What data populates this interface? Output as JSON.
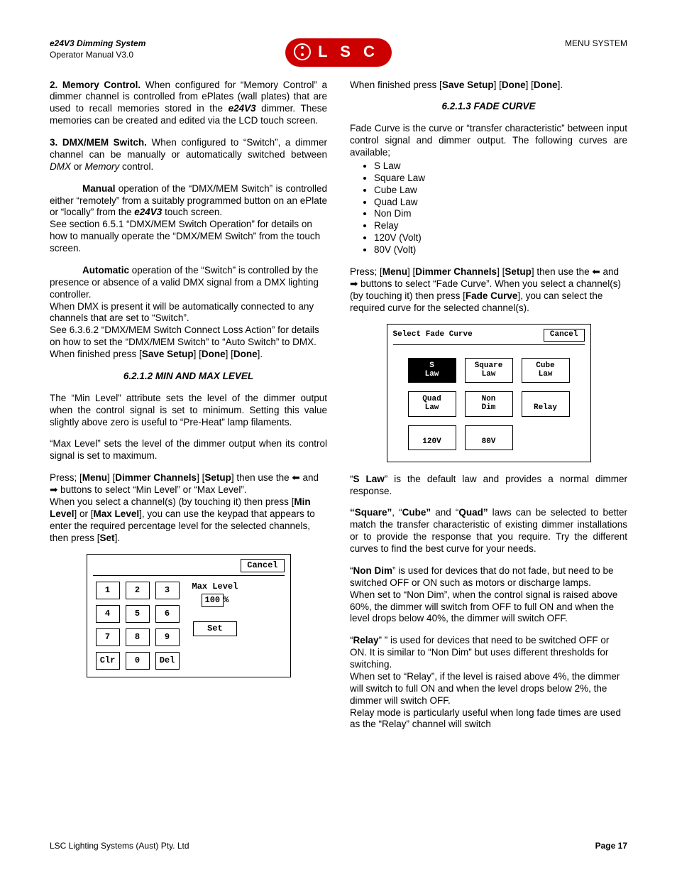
{
  "header": {
    "left_line1": "e24V3 Dimming System",
    "left_line2": "Operator Manual V3.0",
    "right": "MENU SYSTEM",
    "logo_text": "L S C",
    "logo_bg": "#cc0000"
  },
  "footer": {
    "left": "LSC Lighting Systems (Aust) Pty. Ltd",
    "right": "Page 17"
  },
  "left_col": {
    "p1_lead": "2. Memory Control.",
    "p1": " When configured for “Memory Control” a dimmer channel is controlled from ePlates (wall plates) that are used to recall memories stored in the ",
    "p1_em": "e24V3",
    "p1_tail": " dimmer. These memories can be created and edited via the LCD touch screen.",
    "p2_lead": "3. DMX/MEM Switch.",
    "p2": " When configured to “Switch”, a dimmer channel can be manually or automatically switched between ",
    "p2_em1": "DMX",
    "p2_mid": " or ",
    "p2_em2": "Memory",
    "p2_tail": " control.",
    "p3_lead": "Manual",
    "p3": " operation of the “DMX/MEM Switch” is controlled either “remotely” from a suitably programmed button on an ePlate or “locally” from the ",
    "p3_em": "e24V3",
    "p3_tail1": " touch screen.",
    "p3_tail2": "See section 6.5.1 “DMX/MEM Switch Operation” for details on how to manually operate the “DMX/MEM Switch” from the touch screen.",
    "p4_lead": "Automatic",
    "p4a": " operation of the “Switch” is controlled by the presence or absence of a valid DMX signal from a DMX lighting controller.",
    "p4b": "When DMX is present it will be automatically connected to any channels that are set to “Switch”.",
    "p4c": "See 6.3.6.2 “DMX/MEM Switch Connect Loss Action” for details on how to set the “DMX/MEM Switch” to “Auto Switch” to DMX.",
    "p4d_a": "When finished press [",
    "p4d_b": "Save Setup",
    "p4d_c": "] [",
    "p4d_d": "Done",
    "p4d_e": "] [",
    "p4d_f": "Done",
    "p4d_g": "].",
    "sec1_title": "6.2.1.2 MIN AND MAX LEVEL",
    "s1a": "The “Min Level” attribute sets the level of the dimmer output when the control signal is set to minimum. Setting this value slightly above zero is useful to “Pre-Heat” lamp filaments.",
    "s1b": "“Max Level” sets the level of the dimmer output when its control signal is set to maximum.",
    "s1c_a": "Press; [",
    "s1c_b": "Menu",
    "s1c_c": "] [",
    "s1c_d": "Dimmer Channels",
    "s1c_e": "] [",
    "s1c_f": "Setup",
    "s1c_g": "] then use the ⬅ and ➡ buttons to select “Min Level” or “Max Level”.",
    "s1d_a": "When you select a channel(s) (by touching it) then press [",
    "s1d_b": "Min Level",
    "s1d_c": "] or [",
    "s1d_d": "Max Level",
    "s1d_e": "], you can use the keypad that appears to enter the required percentage level for the selected channels, then press [",
    "s1d_f": "Set",
    "s1d_g": "]."
  },
  "right_col": {
    "r0_a": "When finished press [",
    "r0_b": "Save Setup",
    "r0_c": "] [",
    "r0_d": "Done",
    "r0_e": "] [",
    "r0_f": "Done",
    "r0_g": "].",
    "sec2_title": "6.2.1.3 FADE CURVE",
    "r1": "Fade Curve is the curve or “transfer characteristic” between input control signal and dimmer output. The following curves are available;",
    "laws": [
      "S Law",
      "Square Law",
      "Cube Law",
      "Quad Law",
      "Non Dim",
      "Relay",
      "120V (Volt)",
      "80V (Volt)"
    ],
    "r2_a": "Press; [",
    "r2_b": "Menu",
    "r2_c": "] [",
    "r2_d": "Dimmer Channels",
    "r2_e": "] [",
    "r2_f": "Setup",
    "r2_g": "] then use the ⬅ and ➡ buttons to select “Fade Curve”. When you select a channel(s) (by touching it) then press [",
    "r2_h": "Fade Curve",
    "r2_i": "], you can select the required curve for the selected channel(s).",
    "r3_a": "“",
    "r3_b": "S Law",
    "r3_c": "” is the default law and provides a normal dimmer response.",
    "r4_a": "“Square”",
    "r4_b": ", “",
    "r4_c": "Cube”",
    "r4_d": " and “",
    "r4_e": "Quad”",
    "r4_f": " laws can be selected to better match the transfer characteristic of existing dimmer installations or to provide the response that you require. Try the different curves to find the best curve for your needs.",
    "r5_a": " “",
    "r5_b": "Non Dim",
    "r5_c": "” is used for devices that do not fade, but need to be switched OFF or ON such as motors or discharge lamps.",
    "r5_d": "When set to “Non Dim”, when the control signal is raised above 60%, the dimmer will switch from OFF to full ON and when the level drops below 40%, the dimmer will switch OFF.",
    "r6_a": "“",
    "r6_b": "Relay",
    "r6_c": "” ”  is used for devices that need to be switched OFF or ON. It is similar to “Non Dim” but uses different thresholds for switching.",
    "r6_d": "When set to “Relay”, if the level is raised above 4%, the dimmer will switch to full ON and when the level drops below 2%, the dimmer will switch OFF.",
    "r6_e": "Relay mode is particularly useful when long fade times are used as the “Relay” channel will switch"
  },
  "keypad": {
    "cancel": "Cancel",
    "keys": [
      "1",
      "2",
      "3",
      "4",
      "5",
      "6",
      "7",
      "8",
      "9",
      "Clr",
      "0",
      "Del"
    ],
    "label": "Max Level",
    "value": "100",
    "pct": "%",
    "set": "Set"
  },
  "curve": {
    "title": "Select Fade Curve",
    "cancel": "Cancel",
    "cells": [
      {
        "l1": "S",
        "l2": "Law",
        "sel": true
      },
      {
        "l1": "Square",
        "l2": "Law"
      },
      {
        "l1": "Cube",
        "l2": "Law"
      },
      {
        "l1": "Quad",
        "l2": "Law"
      },
      {
        "l1": "Non",
        "l2": "Dim"
      },
      {
        "l1": "Relay",
        "l2": ""
      },
      {
        "l1": "120V",
        "l2": ""
      },
      {
        "l1": "80V",
        "l2": ""
      },
      {
        "blank": true
      }
    ]
  }
}
